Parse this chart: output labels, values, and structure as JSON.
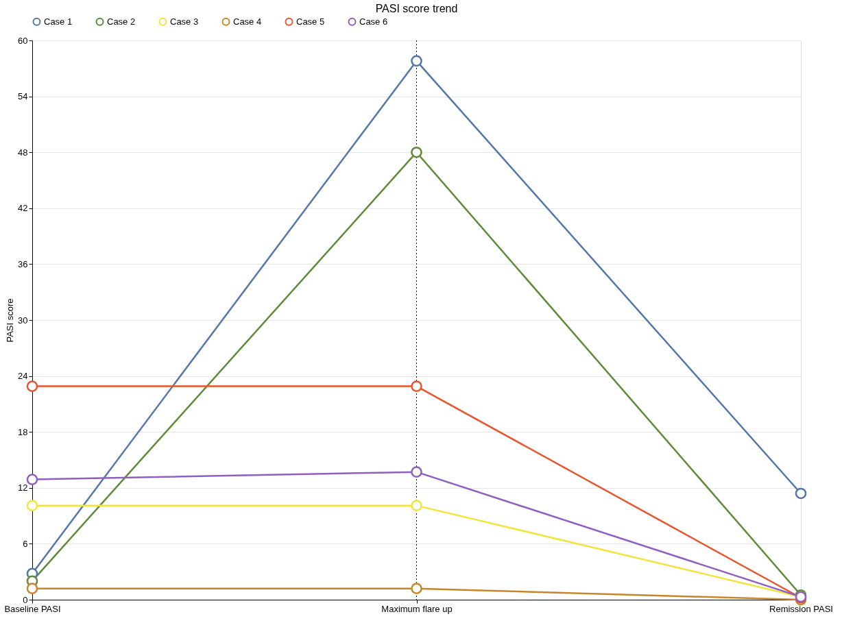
{
  "chart_data": {
    "type": "line",
    "title": "PASI score trend",
    "ylabel": "PASI score",
    "categories": [
      "Baseline PASI",
      "Maximum flare up",
      "Remission PASI"
    ],
    "series": [
      {
        "name": "Case 1",
        "color": "#5477a8",
        "values": [
          2.8,
          57.8,
          11.4
        ]
      },
      {
        "name": "Case 2",
        "color": "#5f8a3a",
        "values": [
          2.0,
          48,
          0.5
        ]
      },
      {
        "name": "Case 3",
        "color": "#f2e43c",
        "values": [
          10.1,
          10.1,
          0.3
        ]
      },
      {
        "name": "Case 4",
        "color": "#c8862a",
        "values": [
          1.2,
          1.2,
          0
        ]
      },
      {
        "name": "Case 5",
        "color": "#e8542c",
        "values": [
          22.9,
          22.9,
          0.2
        ]
      },
      {
        "name": "Case 6",
        "color": "#8e5fc0",
        "values": [
          12.9,
          13.7,
          0.3
        ]
      }
    ],
    "ylim": [
      0,
      60
    ],
    "yticks": [
      0,
      6,
      12,
      18,
      24,
      30,
      36,
      42,
      48,
      54,
      60
    ],
    "ref_lines": [
      {
        "axis": "x",
        "value": "Maximum flare up",
        "color": "#000000",
        "line_style": "dotted"
      }
    ],
    "grid": "y",
    "legend": "top",
    "marker": "circle",
    "line_style": "solid"
  }
}
